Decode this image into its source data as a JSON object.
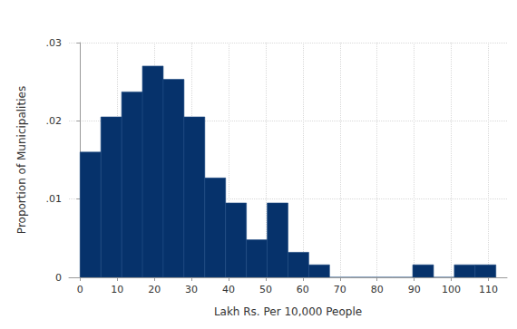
{
  "chart_data": {
    "type": "histogram",
    "xlabel": "Lakh Rs. Per 10,000 People",
    "ylabel": "Proportion of Municipalities",
    "bins": [
      0,
      5.6,
      11.2,
      16.8,
      22.4,
      28,
      33.6,
      39.2,
      44.8,
      50.4,
      56,
      61.6,
      67.2,
      72.8,
      78.4,
      84,
      89.6,
      95.2,
      100.8,
      106.4,
      112
    ],
    "values": [
      0.016,
      0.0205,
      0.0237,
      0.027,
      0.0253,
      0.0205,
      0.0127,
      0.0095,
      0.0048,
      0.0095,
      0.0032,
      0.0016,
      0,
      0,
      0,
      0,
      0.0016,
      0,
      0.0016,
      0.0016
    ],
    "color": "#06326b",
    "xlim": [
      -3,
      115
    ],
    "xticks": [
      0,
      10,
      20,
      30,
      40,
      50,
      60,
      70,
      80,
      90,
      100,
      110
    ],
    "ylim": [
      0,
      0.03
    ],
    "yticks": [
      0,
      {
        "value": 0.01,
        "label": ".01"
      },
      {
        "value": 0.02,
        "label": ".02"
      },
      {
        "value": 0.03,
        "label": ".03"
      }
    ],
    "grid": true
  }
}
